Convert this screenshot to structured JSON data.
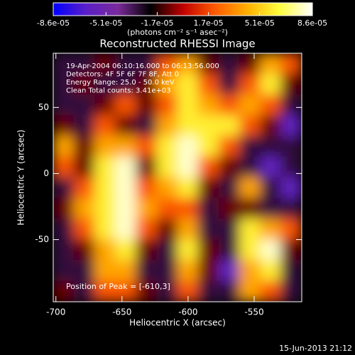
{
  "chart_data": {
    "type": "heatmap",
    "title": "Reconstructed RHESSI Image",
    "xlabel": "Heliocentric X (arcsec)",
    "ylabel": "Heliocentric Y (arcsec)",
    "colorbar_label": "(photons cm⁻² s⁻¹ asec⁻²)",
    "annotations": [
      "19-Apr-2004 06:10:16.000 to 06:13:56.000",
      "Detectors: 4F 5F 6F 7F 8F, Att 0",
      "Energy Range: 25.0 - 50.0 keV",
      "Clean     Total counts: 3.41e+03"
    ],
    "peak_label": "Position of Peak = [-610,3]",
    "timestamp": "15-Jun-2013 21:12",
    "xlim": [
      -702,
      -514
    ],
    "ylim": [
      -97,
      91
    ],
    "xticks": [
      -700,
      -650,
      -600,
      -550
    ],
    "yticks": [
      -50,
      0,
      50
    ],
    "clim": [
      -8.6e-05,
      8.6e-05
    ],
    "cticks": [
      {
        "value": -8.6e-05,
        "label": "-8.6e-05"
      },
      {
        "value": -5.1e-05,
        "label": "-5.1e-05"
      },
      {
        "value": -1.7e-05,
        "label": "-1.7e-05"
      },
      {
        "value": 1.7e-05,
        "label": "1.7e-05"
      },
      {
        "value": 5.1e-05,
        "label": "5.1e-05"
      },
      {
        "value": 8.6e-05,
        "label": "8.6e-05"
      }
    ],
    "colorscale": [
      "#0000ff",
      "#5a1fc8",
      "#7a2a9a",
      "#000000",
      "#c00000",
      "#ff5a00",
      "#ffb000",
      "#ffff40",
      "#ffffff"
    ],
    "z": [
      [
        -3e-05,
        -3e-05,
        -1e-05,
        -3e-05,
        -3e-05,
        2e-05,
        4e-05,
        -1e-05,
        -3e-05,
        -1e-05,
        4e-05,
        2e-05
      ],
      [
        -3e-05,
        -1e-05,
        -3e-05,
        -3e-05,
        -1e-05,
        4e-05,
        6e-05,
        2e-05,
        -3e-05,
        2e-05,
        6e-05,
        -1e-05
      ],
      [
        -3e-05,
        -3e-05,
        -1e-05,
        2e-05,
        -1e-05,
        2e-05,
        6e-05,
        4e-05,
        2e-05,
        4e-05,
        2e-05,
        -3e-05
      ],
      [
        -1e-05,
        -3e-05,
        2e-05,
        -1e-05,
        -3e-05,
        4e-05,
        6e-05,
        6e-05,
        6e-05,
        2e-05,
        -1e-05,
        -6e-05
      ],
      [
        4e-05,
        -1e-05,
        4e-05,
        4e-05,
        2e-05,
        6e-05,
        8e-05,
        6e-05,
        2e-05,
        -3e-05,
        -3e-05,
        -3e-05
      ],
      [
        2e-05,
        -1e-05,
        6e-05,
        8e-05,
        -1e-05,
        6e-05,
        8e-05,
        2e-05,
        -1e-05,
        -3e-05,
        -6e-05,
        -3e-05
      ],
      [
        -3e-05,
        2e-05,
        6e-05,
        8e-05,
        2e-05,
        4e-05,
        6e-05,
        -1e-05,
        -3e-05,
        4e-05,
        -3e-05,
        -6e-05
      ],
      [
        -1e-05,
        4e-05,
        6e-05,
        8e-05,
        4e-05,
        2e-05,
        2e-05,
        -3e-05,
        -1e-05,
        -1e-05,
        -3e-05,
        -3e-05
      ],
      [
        -3e-05,
        2e-05,
        6e-05,
        8e-05,
        2e-05,
        -1e-05,
        4e-05,
        -3e-05,
        -3e-05,
        6e-05,
        4e-05,
        2e-05
      ],
      [
        -3e-05,
        -1e-05,
        4e-05,
        6e-05,
        -1e-05,
        -3e-05,
        6e-05,
        -1e-05,
        -3e-05,
        6e-05,
        8e-05,
        -1e-05
      ],
      [
        -3e-05,
        -3e-05,
        4e-05,
        4e-05,
        -3e-05,
        -3e-05,
        4e-05,
        -1e-05,
        -6e-05,
        4e-05,
        6e-05,
        -3e-05
      ],
      [
        -1e-05,
        -3e-05,
        2e-05,
        2e-05,
        -1e-05,
        -3e-05,
        2e-05,
        -3e-05,
        -3e-05,
        4e-05,
        2e-05,
        -3e-05
      ]
    ]
  }
}
